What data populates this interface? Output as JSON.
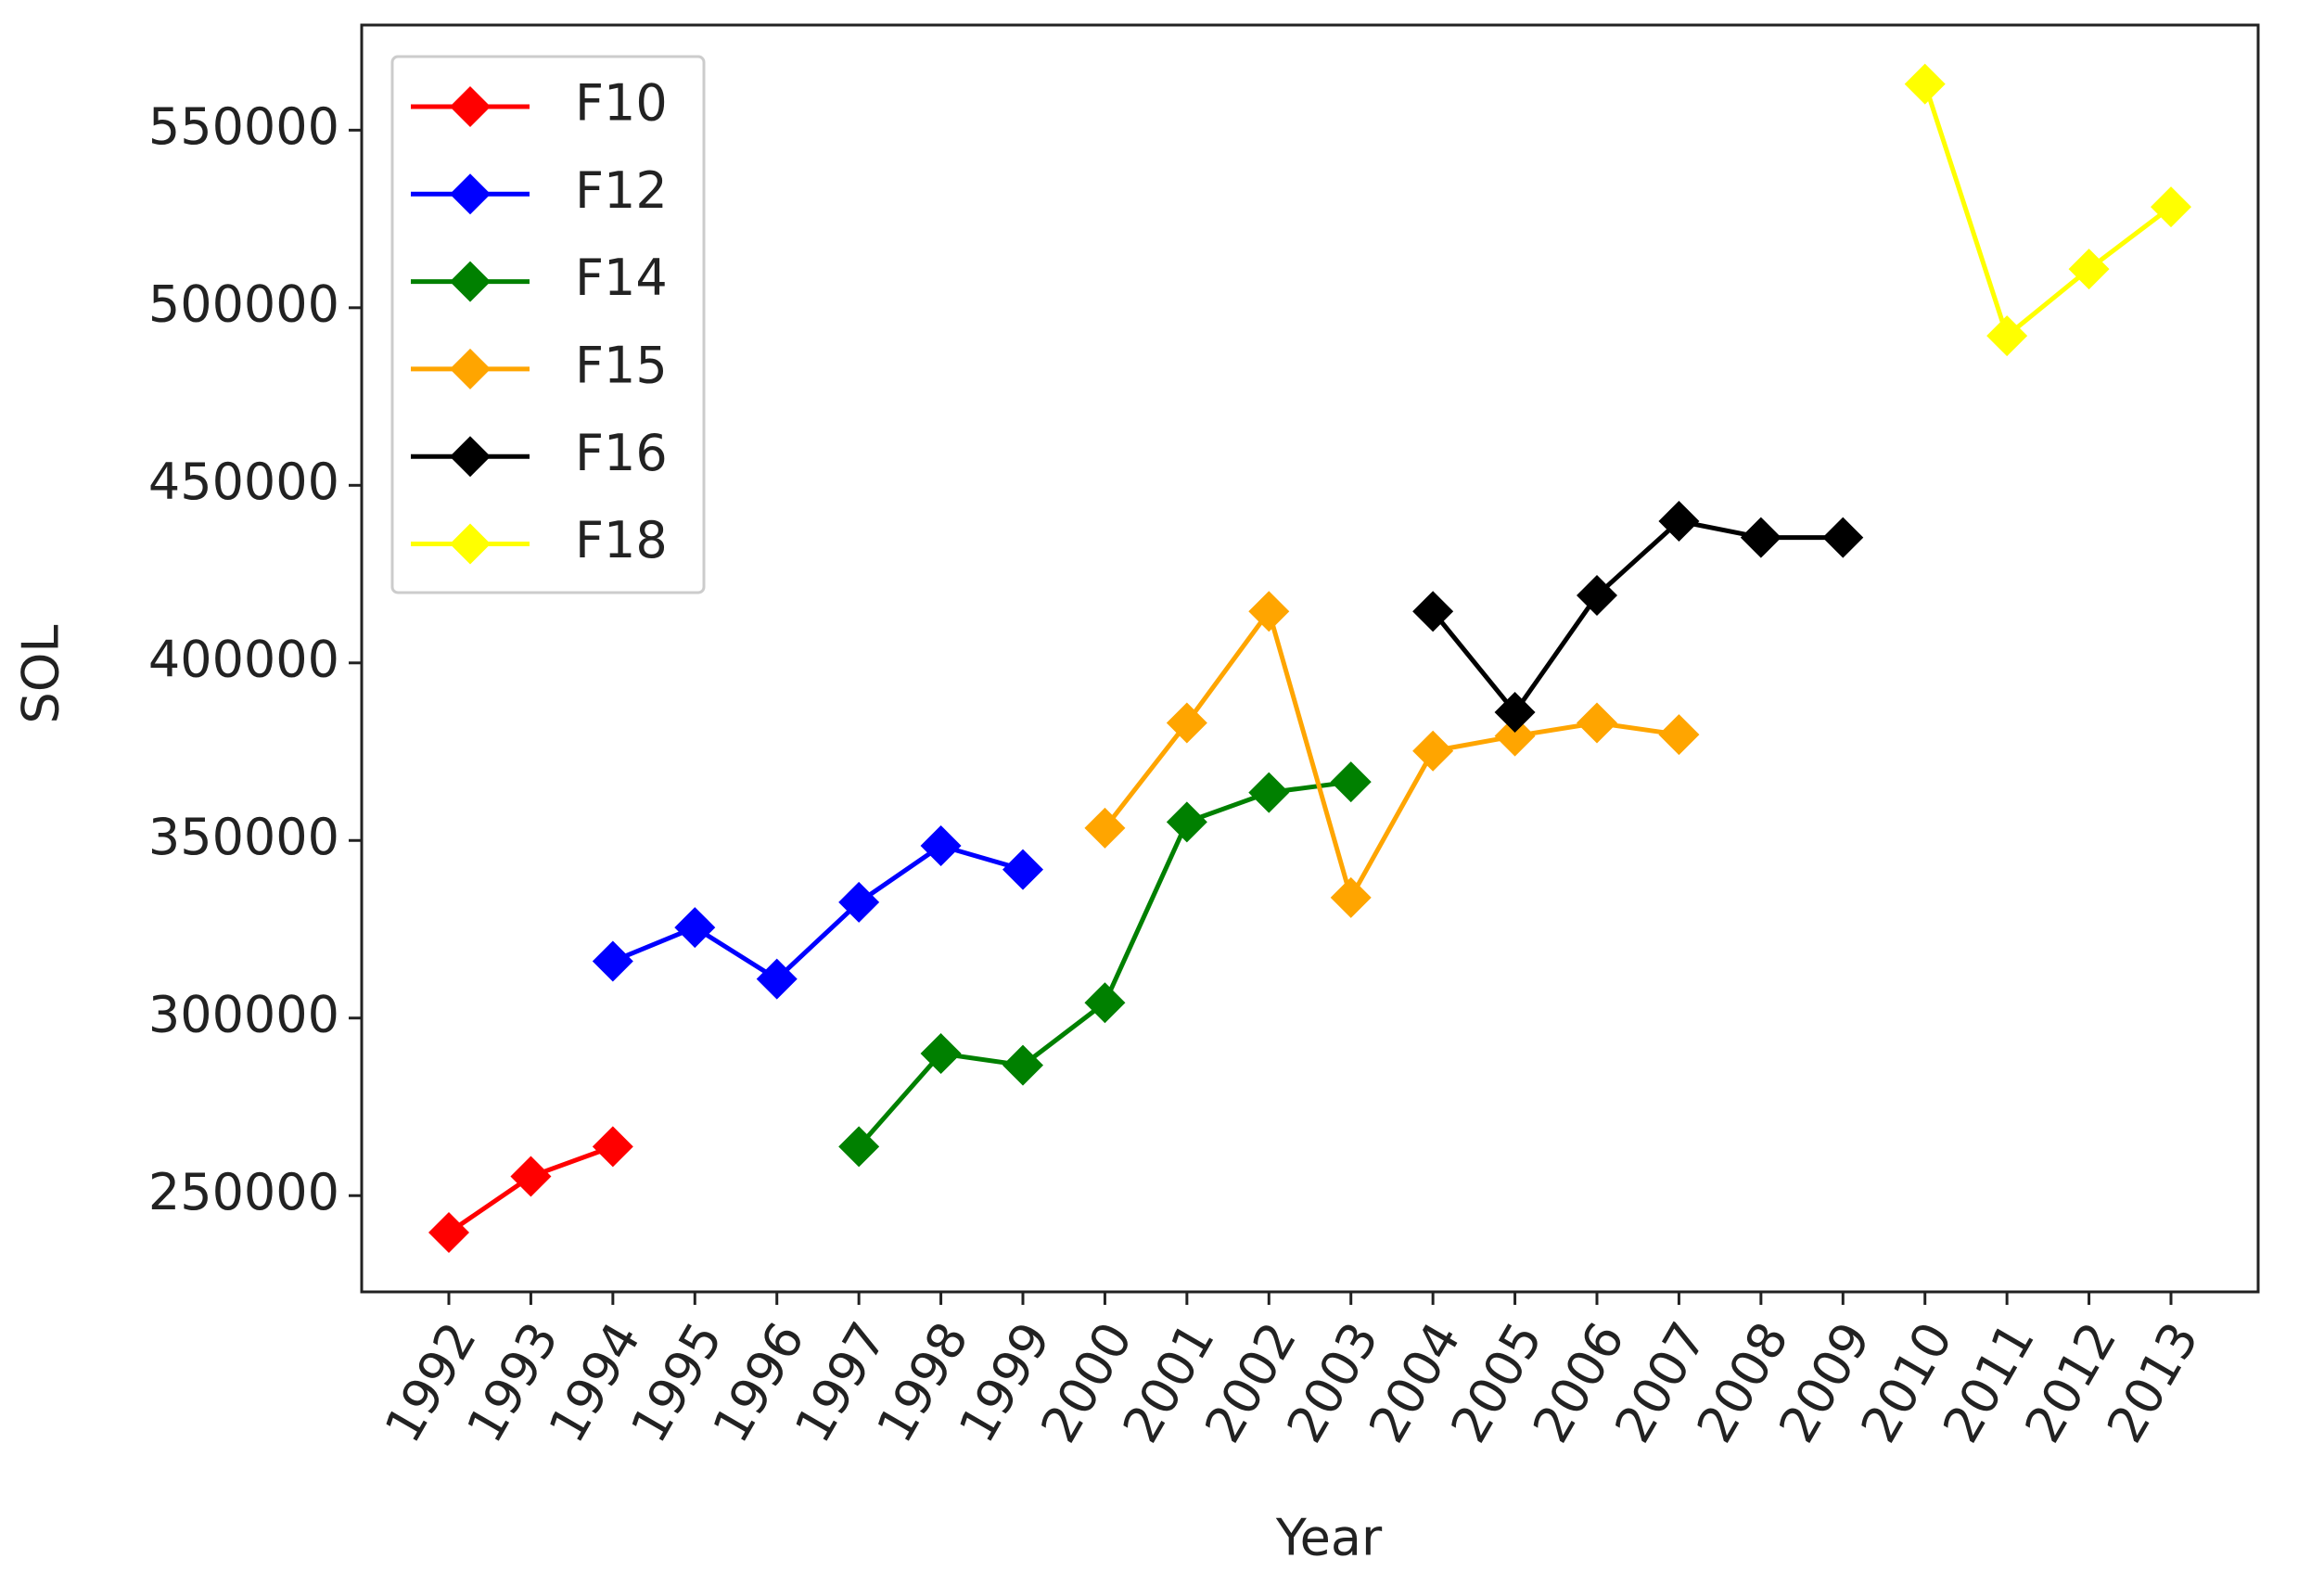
{
  "chart_data": {
    "type": "line",
    "x_label": "Year",
    "y_label": "SOL",
    "categories": [
      "1992",
      "1993",
      "1994",
      "1995",
      "1996",
      "1997",
      "1998",
      "1999",
      "2000",
      "2001",
      "2002",
      "2003",
      "2004",
      "2005",
      "2006",
      "2007",
      "2008",
      "2009",
      "2010",
      "2011",
      "2012",
      "2013"
    ],
    "series": [
      {
        "name": "F10",
        "color": "#ff0000",
        "values": [
          239600,
          255400,
          263800,
          null,
          null,
          null,
          null,
          null,
          null,
          null,
          null,
          null,
          null,
          null,
          null,
          null,
          null,
          null,
          null,
          null,
          null,
          null
        ]
      },
      {
        "name": "F12",
        "color": "#0000ff",
        "values": [
          null,
          null,
          316000,
          325500,
          311000,
          332600,
          348500,
          341800,
          null,
          null,
          null,
          null,
          null,
          null,
          null,
          null,
          null,
          null,
          null,
          null,
          null,
          null
        ]
      },
      {
        "name": "F14",
        "color": "#008000",
        "values": [
          null,
          null,
          null,
          null,
          null,
          263800,
          290000,
          286700,
          304300,
          355200,
          363500,
          366500,
          null,
          null,
          null,
          null,
          null,
          null,
          null,
          null,
          null,
          null
        ]
      },
      {
        "name": "F15",
        "color": "#ffa500",
        "values": [
          null,
          null,
          null,
          null,
          null,
          null,
          null,
          null,
          353500,
          383100,
          414500,
          333900,
          375200,
          379400,
          383100,
          379800,
          null,
          null,
          null,
          null,
          null,
          null
        ]
      },
      {
        "name": "F16",
        "color": "#000000",
        "values": [
          null,
          null,
          null,
          null,
          null,
          null,
          null,
          null,
          null,
          null,
          null,
          null,
          414500,
          386100,
          419000,
          439900,
          435300,
          435300,
          null,
          null,
          null,
          null
        ]
      },
      {
        "name": "F18",
        "color": "#ffff00",
        "values": [
          null,
          null,
          null,
          null,
          null,
          null,
          null,
          null,
          null,
          null,
          null,
          null,
          null,
          null,
          null,
          null,
          null,
          null,
          563000,
          492100,
          510900,
          528400
        ]
      }
    ],
    "ylim": [
      222900,
      579600
    ],
    "yticks": [
      250000,
      300000,
      350000,
      400000,
      450000,
      500000,
      550000
    ],
    "legend": "upper left"
  }
}
